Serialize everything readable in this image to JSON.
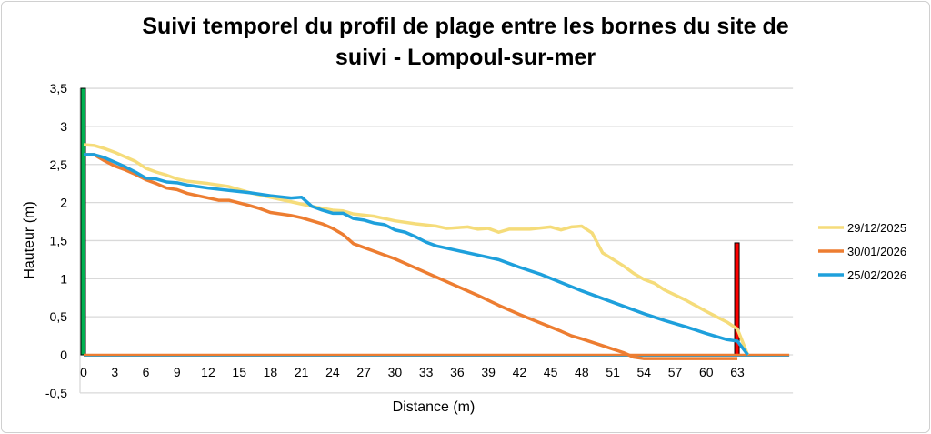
{
  "chart_data": {
    "type": "line",
    "title_line1": "Suivi temporel du profil de plage entre les bornes du site de",
    "title_line2": "suivi - Lompoul-sur-mer",
    "xlabel": "Distance (m)",
    "ylabel": "Hauteur (m)",
    "xlim": [
      0,
      68
    ],
    "ylim": [
      -0.5,
      3.5
    ],
    "xticks": [
      "0",
      "3",
      "6",
      "9",
      "12",
      "15",
      "18",
      "21",
      "24",
      "27",
      "30",
      "33",
      "36",
      "39",
      "42",
      "45",
      "48",
      "51",
      "54",
      "57",
      "60",
      "63"
    ],
    "yticks": [
      "3,5",
      "3",
      "2,5",
      "2",
      "1,5",
      "1",
      "0,5",
      "0",
      "-0,5"
    ],
    "grid": true,
    "legend_position": "right",
    "series": [
      {
        "name": "29/12/2025",
        "color": "#f5dc7a",
        "points": [
          [
            0,
            2.76
          ],
          [
            1,
            2.75
          ],
          [
            2,
            2.71
          ],
          [
            3,
            2.66
          ],
          [
            4,
            2.6
          ],
          [
            5,
            2.54
          ],
          [
            6,
            2.45
          ],
          [
            7,
            2.4
          ],
          [
            8,
            2.36
          ],
          [
            9,
            2.31
          ],
          [
            10,
            2.28
          ],
          [
            12,
            2.25
          ],
          [
            14,
            2.21
          ],
          [
            16,
            2.13
          ],
          [
            18,
            2.07
          ],
          [
            20,
            2.01
          ],
          [
            22,
            1.95
          ],
          [
            24,
            1.9
          ],
          [
            25,
            1.89
          ],
          [
            26,
            1.85
          ],
          [
            28,
            1.82
          ],
          [
            30,
            1.76
          ],
          [
            32,
            1.72
          ],
          [
            34,
            1.69
          ],
          [
            35,
            1.66
          ],
          [
            36,
            1.67
          ],
          [
            37,
            1.68
          ],
          [
            38,
            1.65
          ],
          [
            39,
            1.66
          ],
          [
            40,
            1.61
          ],
          [
            41,
            1.65
          ],
          [
            43,
            1.65
          ],
          [
            45,
            1.68
          ],
          [
            46,
            1.64
          ],
          [
            47,
            1.68
          ],
          [
            48,
            1.69
          ],
          [
            49,
            1.6
          ],
          [
            50,
            1.34
          ],
          [
            52,
            1.17
          ],
          [
            53,
            1.07
          ],
          [
            54,
            0.99
          ],
          [
            55,
            0.94
          ],
          [
            56,
            0.85
          ],
          [
            58,
            0.72
          ],
          [
            60,
            0.57
          ],
          [
            62,
            0.43
          ],
          [
            63,
            0.34
          ],
          [
            64,
            0.0
          ]
        ]
      },
      {
        "name": "30/01/2026",
        "color": "#ed7d31",
        "points": [
          [
            0,
            2.63
          ],
          [
            1,
            2.63
          ],
          [
            2,
            2.55
          ],
          [
            3,
            2.48
          ],
          [
            4,
            2.43
          ],
          [
            5,
            2.37
          ],
          [
            6,
            2.3
          ],
          [
            7,
            2.25
          ],
          [
            8,
            2.19
          ],
          [
            9,
            2.17
          ],
          [
            10,
            2.12
          ],
          [
            12,
            2.06
          ],
          [
            13,
            2.03
          ],
          [
            14,
            2.03
          ],
          [
            16,
            1.96
          ],
          [
            17,
            1.92
          ],
          [
            18,
            1.87
          ],
          [
            20,
            1.83
          ],
          [
            21,
            1.8
          ],
          [
            22,
            1.76
          ],
          [
            23,
            1.72
          ],
          [
            24,
            1.66
          ],
          [
            25,
            1.58
          ],
          [
            26,
            1.46
          ],
          [
            28,
            1.36
          ],
          [
            30,
            1.26
          ],
          [
            32,
            1.14
          ],
          [
            34,
            1.02
          ],
          [
            36,
            0.9
          ],
          [
            38,
            0.78
          ],
          [
            40,
            0.65
          ],
          [
            42,
            0.53
          ],
          [
            44,
            0.42
          ],
          [
            46,
            0.31
          ],
          [
            47,
            0.25
          ],
          [
            48,
            0.21
          ],
          [
            50,
            0.12
          ],
          [
            52,
            0.03
          ],
          [
            53,
            -0.03
          ],
          [
            54,
            -0.05
          ],
          [
            63,
            -0.05
          ]
        ]
      },
      {
        "name": "25/02/2026",
        "color": "#1ea0dc",
        "points": [
          [
            0,
            2.63
          ],
          [
            1,
            2.63
          ],
          [
            2,
            2.59
          ],
          [
            3,
            2.53
          ],
          [
            4,
            2.47
          ],
          [
            5,
            2.4
          ],
          [
            6,
            2.32
          ],
          [
            7,
            2.31
          ],
          [
            8,
            2.27
          ],
          [
            9,
            2.26
          ],
          [
            10,
            2.23
          ],
          [
            12,
            2.19
          ],
          [
            14,
            2.16
          ],
          [
            16,
            2.13
          ],
          [
            18,
            2.09
          ],
          [
            20,
            2.06
          ],
          [
            21,
            2.07
          ],
          [
            22,
            1.95
          ],
          [
            23,
            1.9
          ],
          [
            24,
            1.86
          ],
          [
            25,
            1.86
          ],
          [
            26,
            1.79
          ],
          [
            27,
            1.77
          ],
          [
            28,
            1.73
          ],
          [
            29,
            1.71
          ],
          [
            30,
            1.64
          ],
          [
            31,
            1.61
          ],
          [
            32,
            1.55
          ],
          [
            33,
            1.48
          ],
          [
            34,
            1.43
          ],
          [
            36,
            1.37
          ],
          [
            38,
            1.31
          ],
          [
            40,
            1.25
          ],
          [
            41,
            1.2
          ],
          [
            42,
            1.15
          ],
          [
            44,
            1.06
          ],
          [
            46,
            0.95
          ],
          [
            48,
            0.84
          ],
          [
            50,
            0.74
          ],
          [
            52,
            0.64
          ],
          [
            54,
            0.54
          ],
          [
            56,
            0.45
          ],
          [
            58,
            0.37
          ],
          [
            60,
            0.28
          ],
          [
            62,
            0.2
          ],
          [
            63,
            0.18
          ],
          [
            64,
            0.0
          ]
        ]
      }
    ],
    "baseline": {
      "y": 0,
      "x_range": [
        0,
        68
      ],
      "color": "#ed7d31"
    },
    "markers": [
      {
        "name": "borne-start",
        "x": 0,
        "height": 3.5,
        "color": "#00b050"
      },
      {
        "name": "borne-end",
        "x": 63,
        "height": 1.47,
        "color": "#ff0000"
      }
    ]
  }
}
